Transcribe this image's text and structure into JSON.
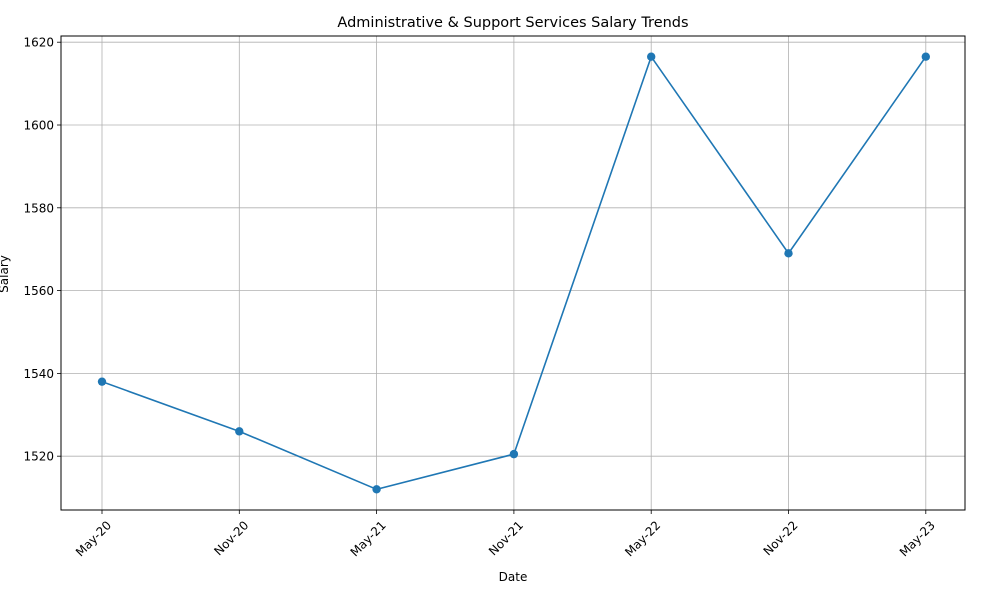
{
  "chart_data": {
    "type": "line",
    "title": "Administrative & Support Services Salary Trends",
    "xlabel": "Date",
    "ylabel": "Salary",
    "categories": [
      "May-20",
      "Nov-20",
      "May-21",
      "Nov-21",
      "May-22",
      "Nov-22",
      "May-23"
    ],
    "series": [
      {
        "values": [
          1538,
          1526,
          1512,
          1520.5,
          1616.5,
          1569,
          1616.5
        ]
      }
    ],
    "ylim": [
      1507,
      1621.5
    ],
    "yticks": [
      1520,
      1540,
      1560,
      1580,
      1600,
      1620
    ],
    "grid": true,
    "marker": "circle",
    "line_color": "#1f77b4",
    "grid_color": "#b0b0b0"
  }
}
